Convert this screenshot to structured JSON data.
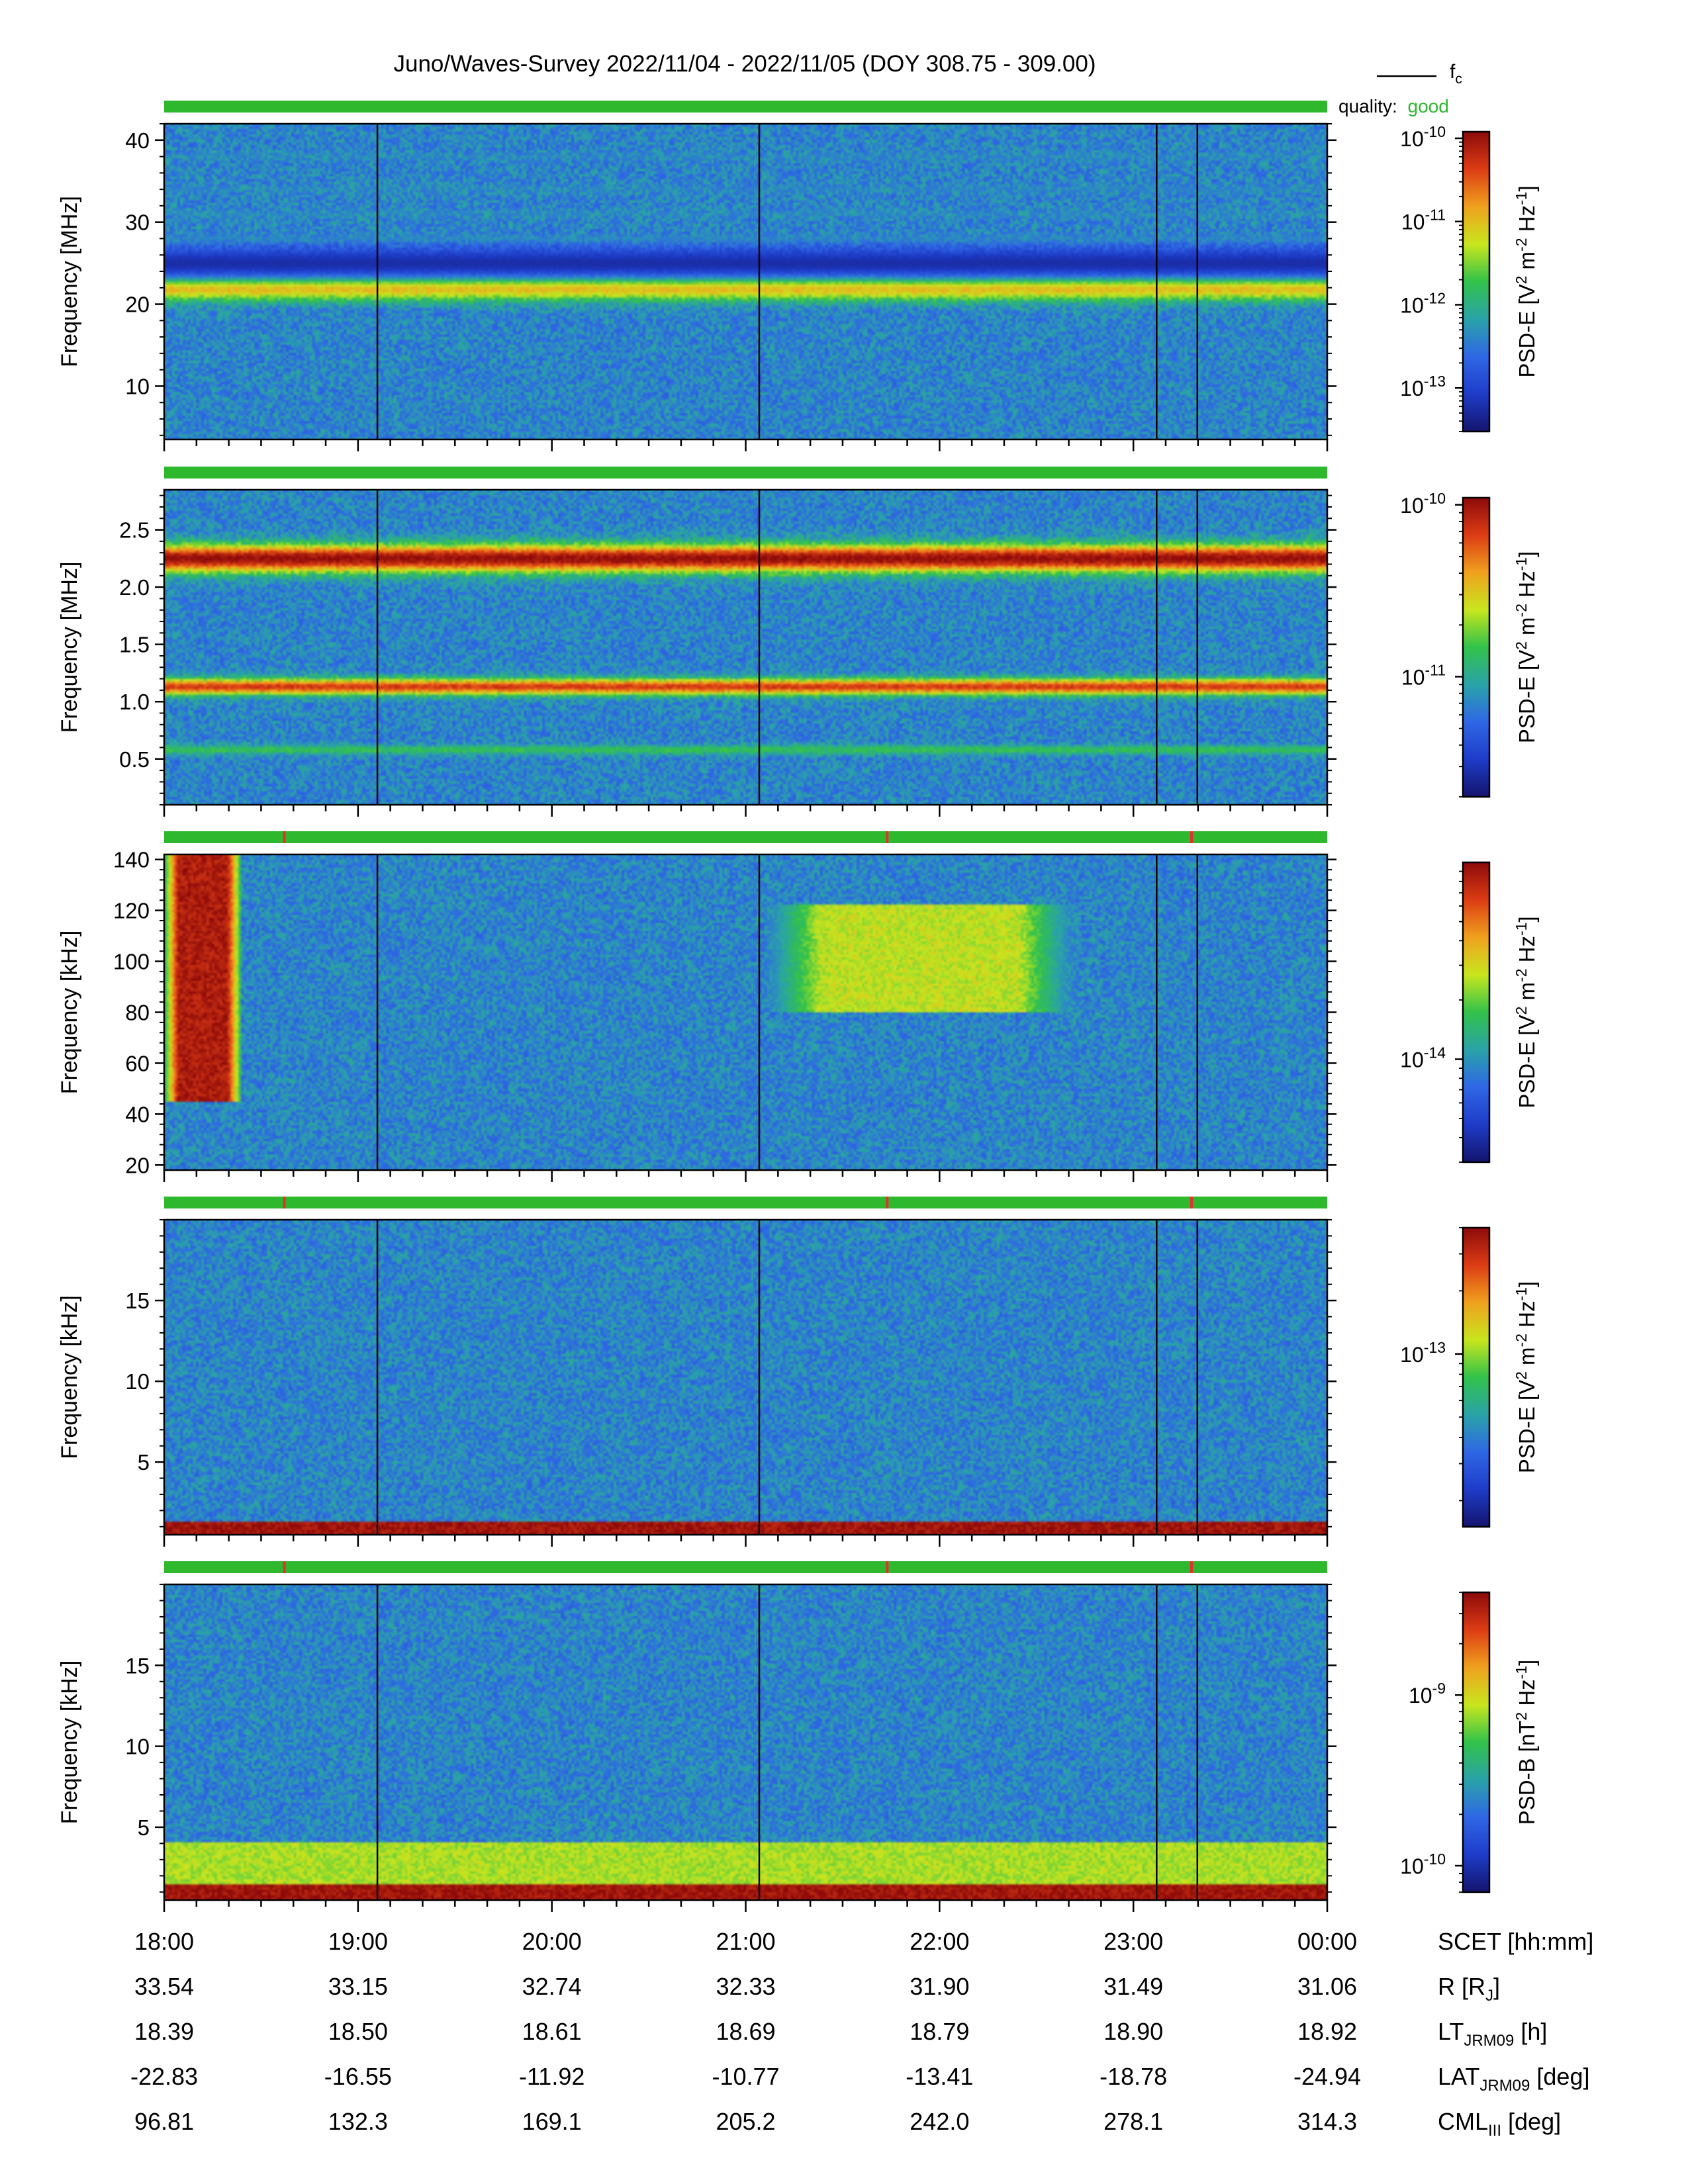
{
  "title": "Juno/Waves-Survey  2022/11/04 - 2022/11/05 (DOY 308.75 - 309.00)",
  "legend": {
    "fc_label": "f",
    "fc_sub": "c",
    "quality_label": "quality:",
    "quality_value": "good",
    "quality_color": "#2eb82e"
  },
  "colors": {
    "quality_good": "#2eb82e",
    "quality_flag": "#e03030",
    "colormap": [
      "#14146e",
      "#1e3cc8",
      "#2f67e6",
      "#2aa3a8",
      "#32c24a",
      "#c8e61e",
      "#f0a01e",
      "#dc3c14",
      "#8c0a0a"
    ]
  },
  "chart_data": [
    {
      "type": "heatmap",
      "ylabel": "Frequency [MHz]",
      "ylim": [
        3.5,
        42
      ],
      "yticks": [
        {
          "value": 10,
          "label": "10"
        },
        {
          "value": 20,
          "label": "20"
        },
        {
          "value": 30,
          "label": "30"
        },
        {
          "value": 40,
          "label": "40"
        }
      ],
      "colorbar": {
        "label": "PSD-E [V",
        "label_parts": [
          "PSD-E [V",
          "2",
          " m",
          "-2",
          " Hz",
          "-1",
          "]"
        ],
        "scale": "log",
        "range": [
          3e-14,
          1.2e-10
        ],
        "ticks": [
          {
            "exp": -10,
            "label": "10",
            "sup": "-10"
          },
          {
            "exp": -11,
            "label": "10",
            "sup": "-11"
          },
          {
            "exp": -12,
            "label": "10",
            "sup": "-12"
          },
          {
            "exp": -13,
            "label": "10",
            "sup": "-13"
          }
        ]
      },
      "features": [
        {
          "desc": "intense band",
          "f_center": 22,
          "width": 1.5,
          "level": 0.72
        },
        {
          "desc": "dark band",
          "f_center": 25,
          "width": 2.0,
          "level": 0.08
        },
        {
          "desc": "weak bands",
          "f_center": [
            28,
            31,
            34,
            38
          ],
          "level": 0.28
        }
      ],
      "quality_flags": []
    },
    {
      "type": "heatmap",
      "ylabel": "Frequency [MHz]",
      "ylim": [
        0.1,
        2.85
      ],
      "yticks": [
        {
          "value": 0.5,
          "label": "0.5"
        },
        {
          "value": 1.0,
          "label": "1.0"
        },
        {
          "value": 1.5,
          "label": "1.5"
        },
        {
          "value": 2.0,
          "label": "2.0"
        },
        {
          "value": 2.5,
          "label": "2.5"
        }
      ],
      "colorbar": {
        "label": "PSD-E [V",
        "label_parts": [
          "PSD-E [V",
          "2",
          " m",
          "-2",
          " Hz",
          "-1",
          "]"
        ],
        "scale": "log",
        "range": [
          2e-12,
          1.1e-10
        ],
        "ticks": [
          {
            "exp": -10,
            "label": "10",
            "sup": "-10"
          },
          {
            "exp": -11,
            "label": "10",
            "sup": "-11"
          }
        ]
      },
      "features": [
        {
          "desc": "intense band",
          "f_center": 2.25,
          "width": 0.12,
          "level": 0.95
        },
        {
          "desc": "intense band",
          "f_center": 1.13,
          "width": 0.07,
          "level": 0.85
        },
        {
          "desc": "weak band",
          "f_center": 0.58,
          "width": 0.04,
          "level": 0.45
        }
      ],
      "quality_flags": []
    },
    {
      "type": "heatmap",
      "ylabel": "Frequency [kHz]",
      "ylim": [
        18,
        142
      ],
      "yticks": [
        {
          "value": 20,
          "label": "20"
        },
        {
          "value": 40,
          "label": "40"
        },
        {
          "value": 60,
          "label": "60"
        },
        {
          "value": 80,
          "label": "80"
        },
        {
          "value": 100,
          "label": "100"
        },
        {
          "value": 120,
          "label": "120"
        },
        {
          "value": 140,
          "label": "140"
        }
      ],
      "colorbar": {
        "label": "PSD-E [V",
        "label_parts": [
          "PSD-E [V",
          "2",
          " m",
          "-2",
          " Hz",
          "-1",
          "]"
        ],
        "scale": "log",
        "range": [
          3e-15,
          1e-13
        ],
        "ticks": [
          {
            "exp": -14,
            "label": "10",
            "sup": "-14"
          }
        ]
      },
      "features": [
        {
          "desc": "intense burst",
          "t_start": 18.0,
          "t_end": 18.4,
          "f_range": [
            45,
            142
          ],
          "level": 0.95
        },
        {
          "desc": "emission patch",
          "t_start": 21.1,
          "t_end": 22.7,
          "f_range": [
            80,
            122
          ],
          "level": 0.62
        }
      ],
      "quality_flags": [
        18.62,
        21.73,
        23.3
      ]
    },
    {
      "type": "heatmap",
      "ylabel": "Frequency [kHz]",
      "ylim": [
        0.5,
        20
      ],
      "yticks": [
        {
          "value": 5,
          "label": "5"
        },
        {
          "value": 10,
          "label": "10"
        },
        {
          "value": 15,
          "label": "15"
        }
      ],
      "colorbar": {
        "label": "PSD-E [V",
        "label_parts": [
          "PSD-E [V",
          "2",
          " m",
          "-2",
          " Hz",
          "-1",
          "]"
        ],
        "scale": "log",
        "range": [
          1.5e-14,
          4e-13
        ],
        "ticks": [
          {
            "exp": -13,
            "label": "10",
            "sup": "-13"
          }
        ]
      },
      "features": [
        {
          "desc": "intense low-frequency band",
          "f_range": [
            0.5,
            1.3
          ],
          "level": 0.97
        }
      ],
      "quality_flags": [
        18.62,
        21.73,
        23.3
      ]
    },
    {
      "type": "heatmap",
      "ylabel": "Frequency [kHz]",
      "ylim": [
        0.5,
        20
      ],
      "yticks": [
        {
          "value": 5,
          "label": "5"
        },
        {
          "value": 10,
          "label": "10"
        },
        {
          "value": 15,
          "label": "15"
        }
      ],
      "colorbar": {
        "label": "PSD-B [nT",
        "label_parts": [
          "PSD-B [nT",
          "2",
          " Hz",
          "-1",
          "]"
        ],
        "scale": "log",
        "range": [
          7e-11,
          4e-09
        ],
        "ticks": [
          {
            "exp": -9,
            "label": "10",
            "sup": "-9"
          },
          {
            "exp": -10,
            "label": "10",
            "sup": "-10"
          }
        ]
      },
      "features": [
        {
          "desc": "intense low-frequency band",
          "f_range": [
            0.5,
            1.5
          ],
          "level": 0.97
        },
        {
          "desc": "broad emission",
          "f_range": [
            1.5,
            4
          ],
          "level": 0.6
        }
      ],
      "quality_flags": [
        18.62,
        21.73,
        23.3
      ]
    }
  ],
  "x_axis": {
    "scale_hours": [
      18,
      24
    ],
    "tick_hours": [
      18,
      19,
      20,
      21,
      22,
      23,
      24
    ],
    "vertical_markers_hours": [
      19.1,
      21.07,
      23.12,
      23.33
    ]
  },
  "ephemeris": {
    "rows": [
      {
        "label": "SCET [hh:mm]",
        "label_sub": "",
        "label_post": "",
        "values": [
          "18:00",
          "19:00",
          "20:00",
          "21:00",
          "22:00",
          "23:00",
          "00:00"
        ]
      },
      {
        "label": "R [R",
        "label_sub": "J",
        "label_post": "]",
        "values": [
          "33.54",
          "33.15",
          "32.74",
          "32.33",
          "31.90",
          "31.49",
          "31.06"
        ]
      },
      {
        "label": "LT",
        "label_sub": "JRM09",
        "label_post": " [h]",
        "values": [
          "18.39",
          "18.50",
          "18.61",
          "18.69",
          "18.79",
          "18.90",
          "18.92"
        ]
      },
      {
        "label": "LAT",
        "label_sub": "JRM09",
        "label_post": " [deg]",
        "values": [
          "-22.83",
          "-16.55",
          "-11.92",
          "-10.77",
          "-13.41",
          "-18.78",
          "-24.94"
        ]
      },
      {
        "label": "CML",
        "label_sub": "III",
        "label_post": " [deg]",
        "values": [
          "96.81",
          "132.3",
          "169.1",
          "205.2",
          "242.0",
          "278.1",
          "314.3"
        ]
      }
    ]
  }
}
